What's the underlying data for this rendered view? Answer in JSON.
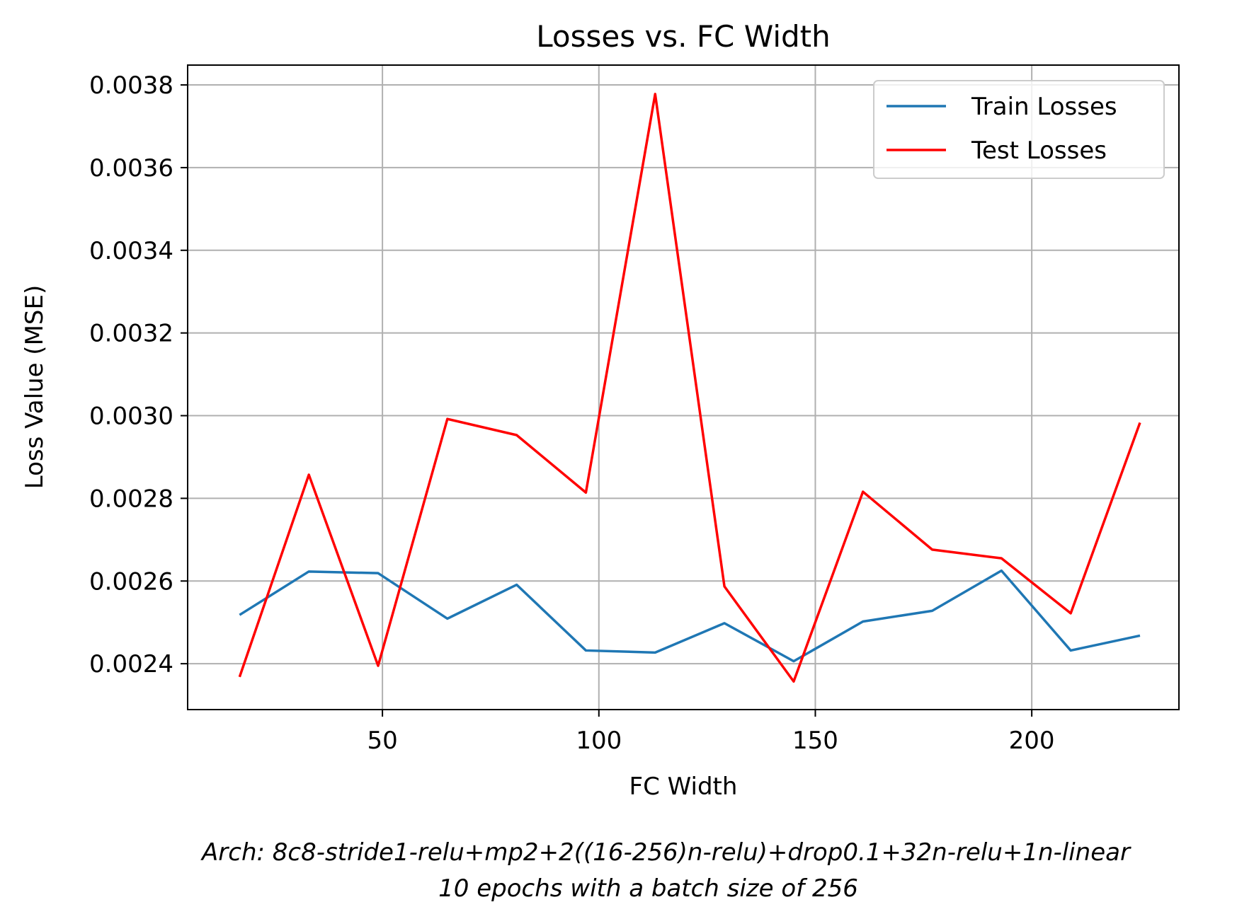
{
  "chart_data": {
    "type": "line",
    "title": "Losses vs. FC Width",
    "xlabel": "FC Width",
    "ylabel": "Loss Value (MSE)",
    "xlim": [
      5,
      234
    ],
    "ylim": [
      0.002289,
      0.003848
    ],
    "xticks": [
      50,
      100,
      150,
      200
    ],
    "xtick_labels": [
      "50",
      "100",
      "150",
      "200"
    ],
    "yticks": [
      0.0024,
      0.0026,
      0.0028,
      0.003,
      0.0032,
      0.0034,
      0.0036,
      0.0038
    ],
    "ytick_labels": [
      "0.0024",
      "0.0026",
      "0.0028",
      "0.0030",
      "0.0032",
      "0.0034",
      "0.0036",
      "0.0038"
    ],
    "grid": true,
    "legend_position": "top-right",
    "x": [
      17,
      33,
      49,
      65,
      81,
      97,
      113,
      129,
      145,
      161,
      177,
      193,
      209,
      225
    ],
    "series": [
      {
        "name": "Train Losses",
        "color": "#1f77b4",
        "values": [
          0.002518,
          0.002623,
          0.002619,
          0.002509,
          0.002591,
          0.002432,
          0.002427,
          0.002498,
          0.002406,
          0.002502,
          0.002528,
          0.002625,
          0.002432,
          0.002468
        ]
      },
      {
        "name": "Test Losses",
        "color": "#ff0000",
        "values": [
          0.002368,
          0.002857,
          0.002395,
          0.002992,
          0.002953,
          0.002814,
          0.003778,
          0.002587,
          0.002357,
          0.002816,
          0.002676,
          0.002655,
          0.002522,
          0.002983
        ]
      }
    ]
  },
  "caption": {
    "line1": "Arch: 8c8-stride1-relu+mp2+2((16-256)n-relu)+drop0.1+32n-relu+1n-linear",
    "line2": "10 epochs with a batch size of 256"
  }
}
